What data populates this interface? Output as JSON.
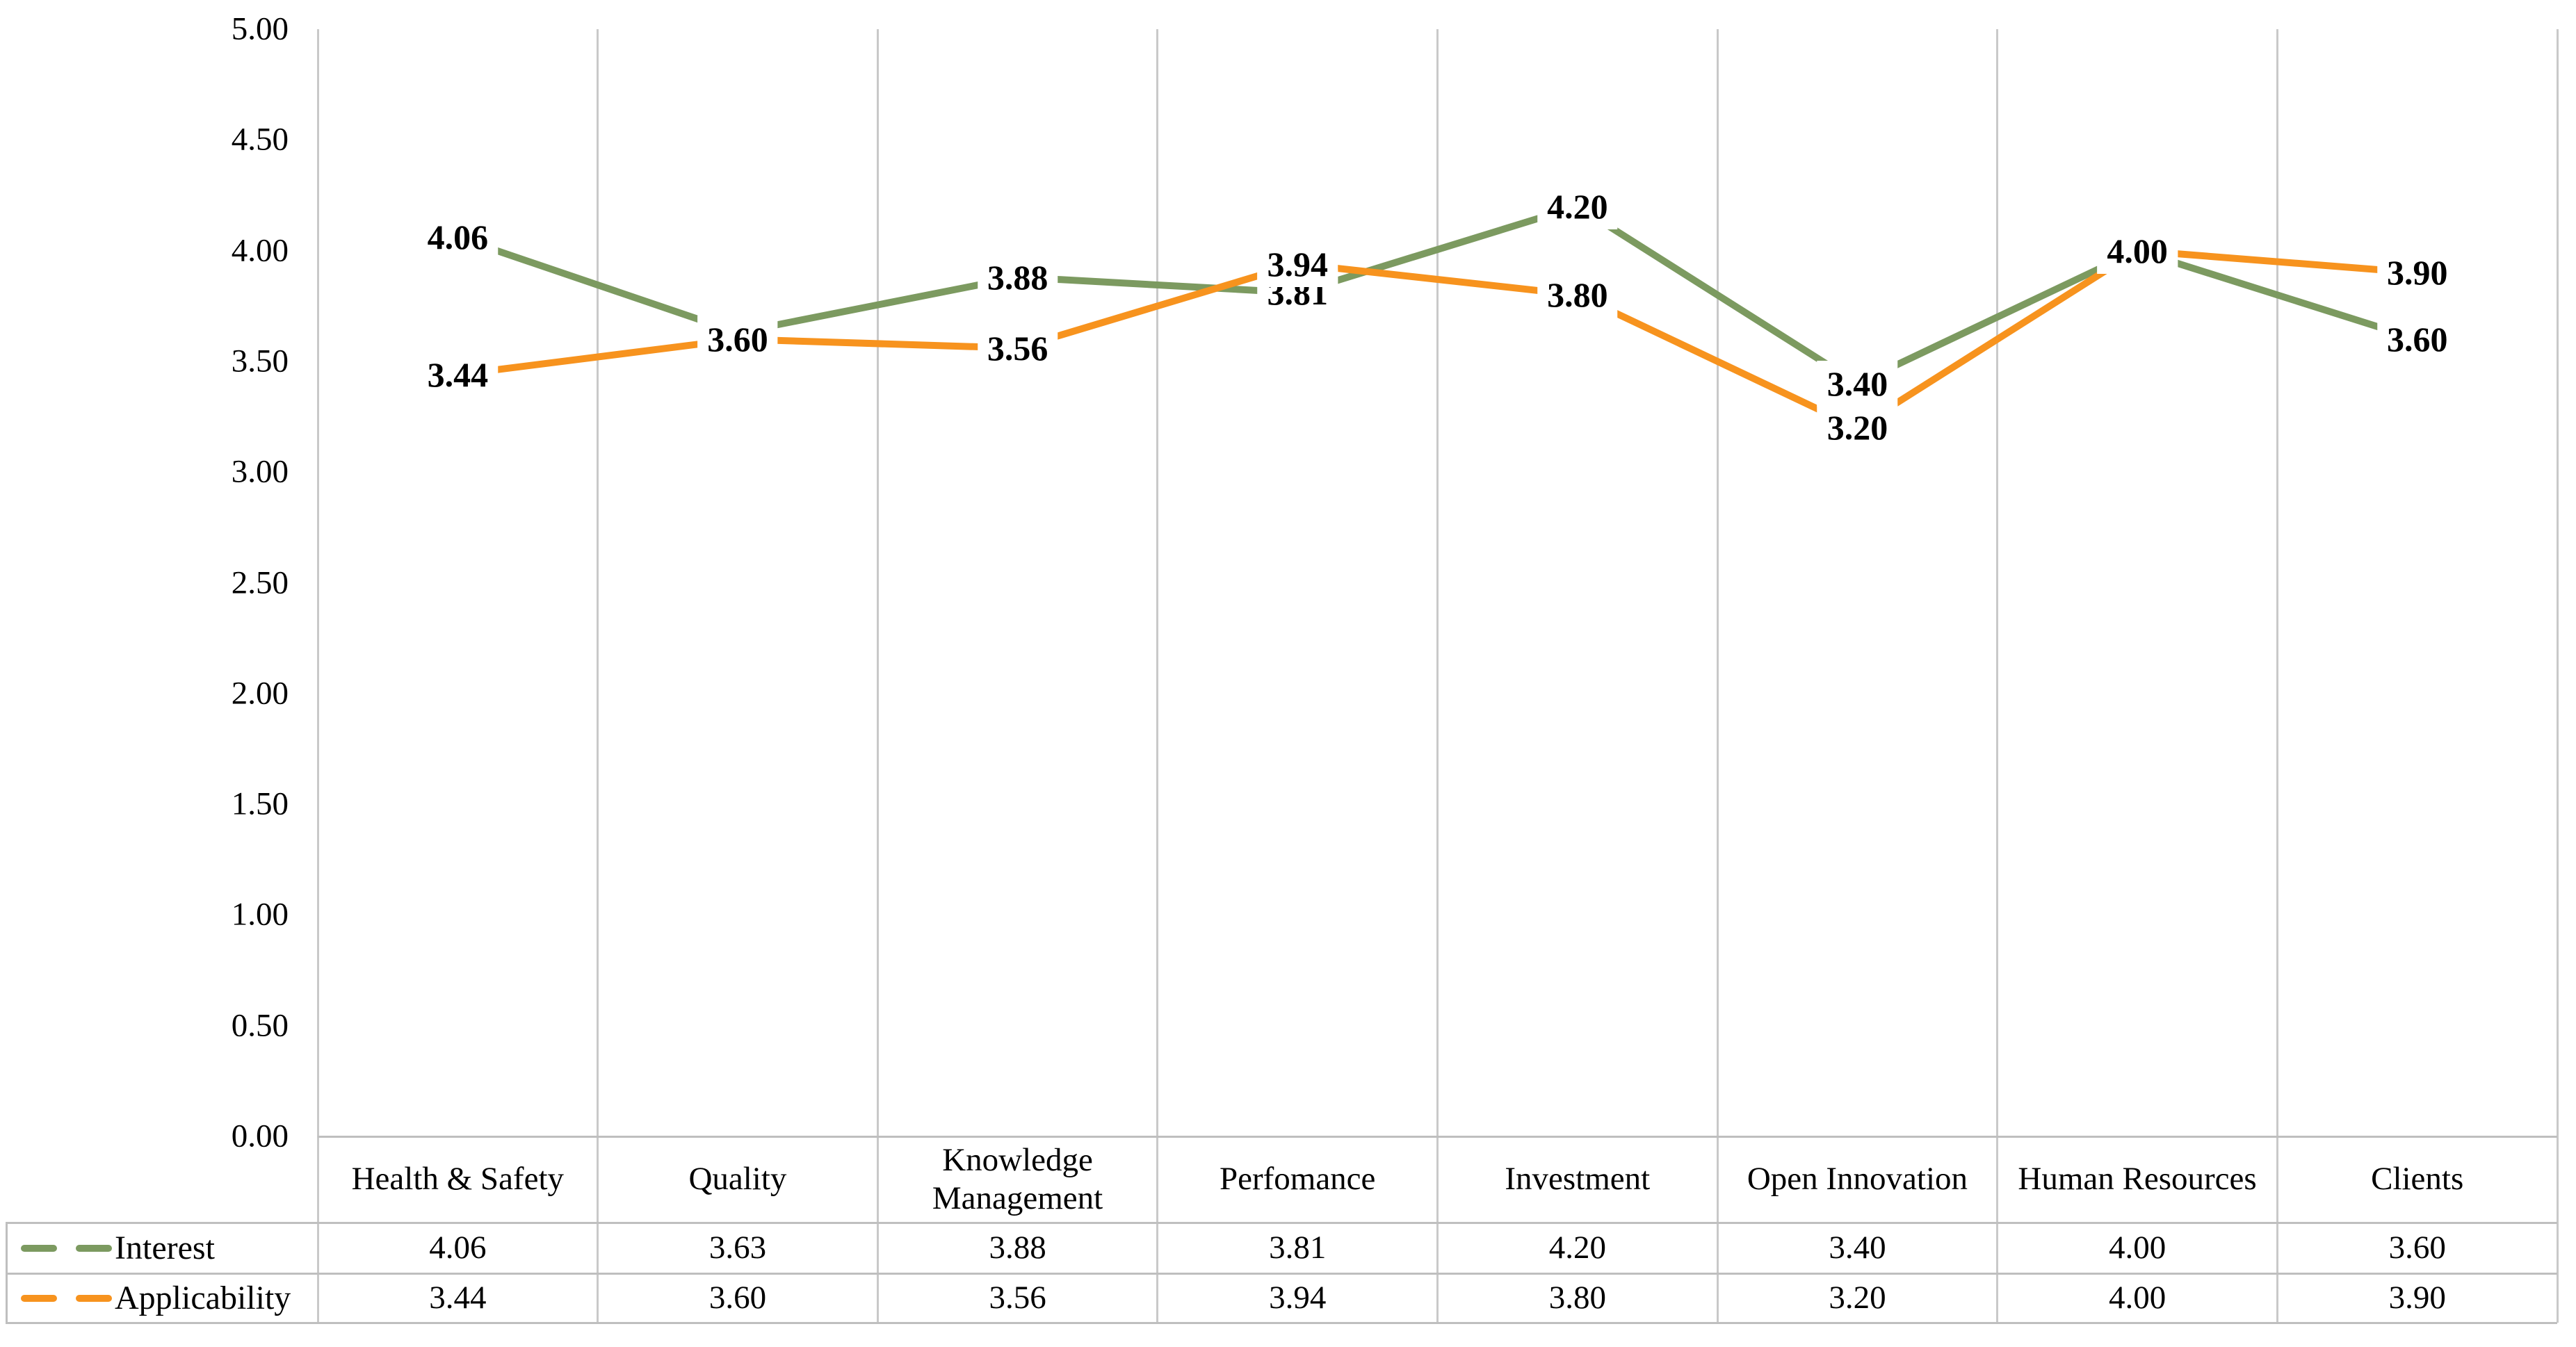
{
  "chart_data": {
    "type": "line",
    "categories": [
      "Health & Safety",
      "Quality",
      "Knowledge Management",
      "Perfomance",
      "Investment",
      "Open Innovation",
      "Human Resources",
      "Clients"
    ],
    "series": [
      {
        "name": "Interest",
        "color": "#7c9a60",
        "values": [
          4.06,
          3.63,
          3.88,
          3.81,
          4.2,
          3.4,
          4.0,
          3.6
        ],
        "labels": [
          "4.06",
          "3.63",
          "3.88",
          "3.81",
          "4.20",
          "3.40",
          "4.00",
          "3.60"
        ]
      },
      {
        "name": "Applicability",
        "color": "#f7931e",
        "values": [
          3.44,
          3.6,
          3.56,
          3.94,
          3.8,
          3.2,
          4.0,
          3.9
        ],
        "labels": [
          "3.44",
          "3.60",
          "3.56",
          "3.94",
          "3.80",
          "3.20",
          "4.00",
          "3.90"
        ]
      }
    ],
    "y_axis": {
      "min": 0,
      "max": 5,
      "step": 0.5,
      "tick_labels": [
        "0.00",
        "0.50",
        "1.00",
        "1.50",
        "2.00",
        "2.50",
        "3.00",
        "3.50",
        "4.00",
        "4.50",
        "5.00"
      ]
    },
    "grid": "vertical-only",
    "legend_position": "bottom-table-left",
    "data_label_position": "center-on-point-white-fill",
    "colors": {
      "gridline": "#c9c9c9",
      "table_border": "#bfbfbf",
      "text": "#000000"
    }
  }
}
